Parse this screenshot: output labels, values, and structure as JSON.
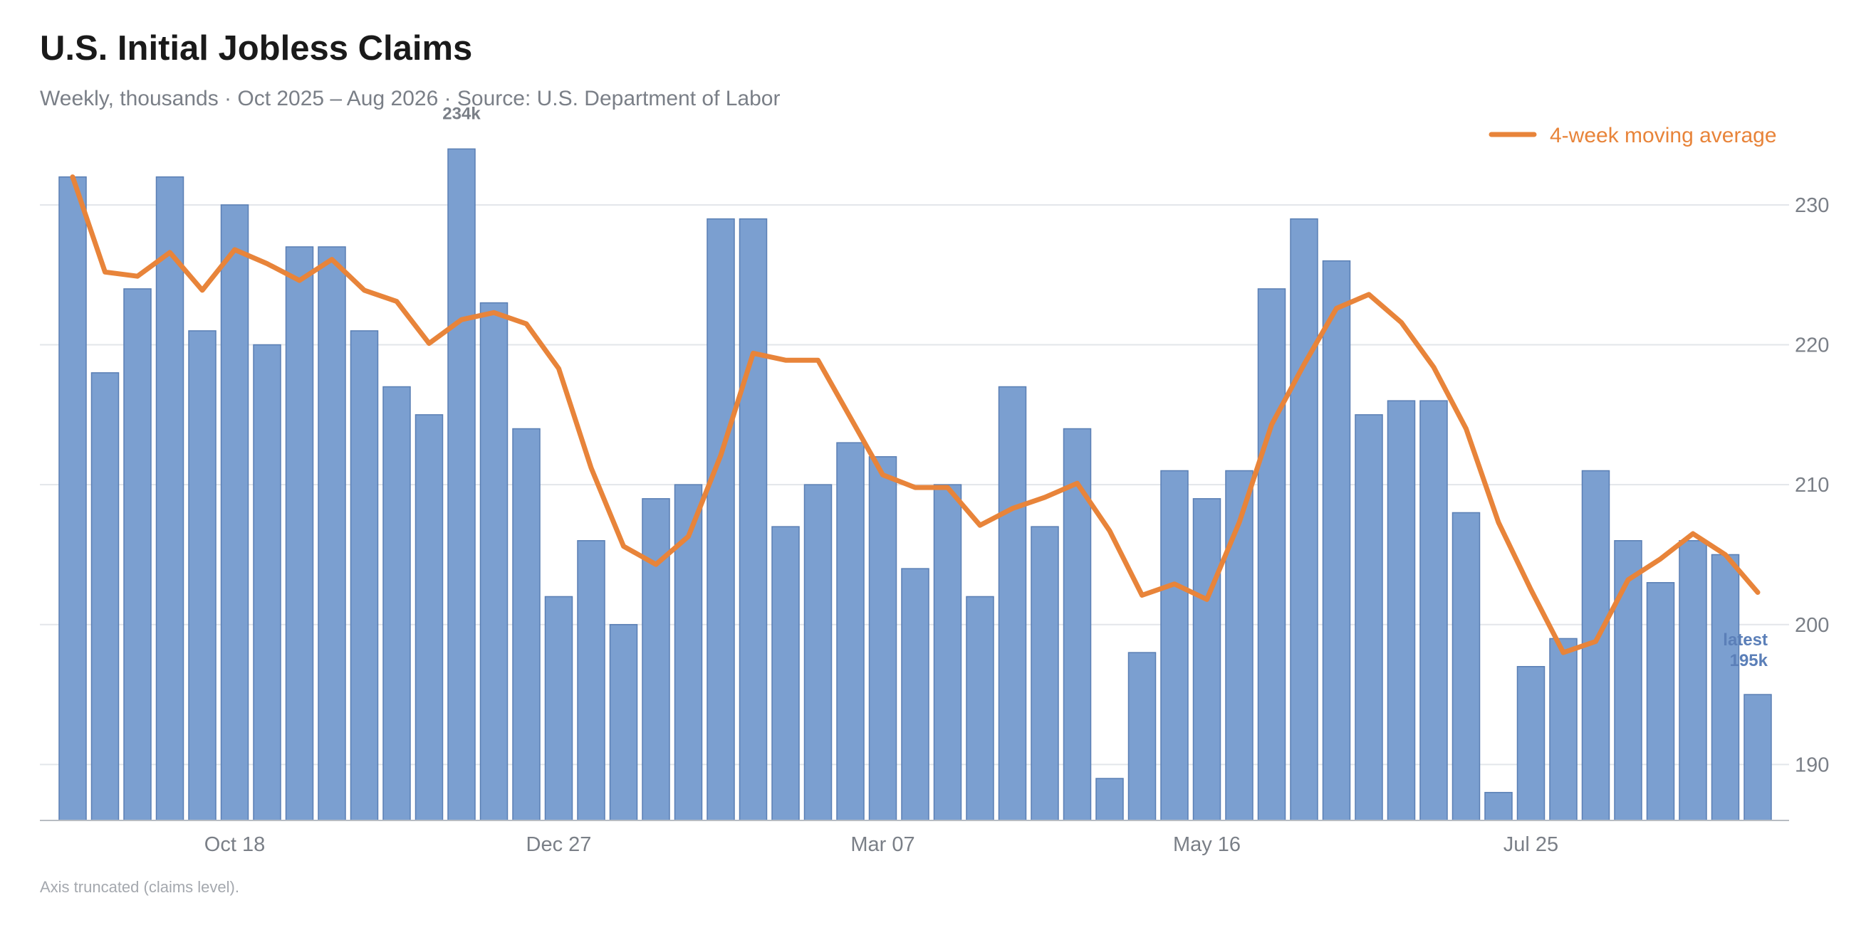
{
  "title": "U.S. Initial Jobless Claims",
  "subtitle": "Weekly, thousands · Oct 2025 – Aug 2026 · Source: U.S. Department of Labor",
  "footnote": "Axis truncated (claims level).",
  "colors": {
    "bar": "#7b9fd0",
    "bar_stroke": "#5a7fb4",
    "line": "#e8843a",
    "grid": "#e3e6ea",
    "axis": "#b8bcc2",
    "peak_label": "#7a7f87",
    "latest_label": "#5b7fb8"
  },
  "chart_data": {
    "type": "bar",
    "ylim": [
      186,
      236
    ],
    "yticks": [
      190,
      200,
      210,
      220,
      230
    ],
    "grid": true,
    "xtick_labels": [
      {
        "index": 5,
        "label": "Oct 18"
      },
      {
        "index": 15,
        "label": "Dec 27"
      },
      {
        "index": 25,
        "label": "Mar 07"
      },
      {
        "index": 35,
        "label": "May 16"
      },
      {
        "index": 45,
        "label": "Jul 25"
      }
    ],
    "legend": {
      "position": "top-right",
      "entries": [
        "4-week moving average"
      ]
    },
    "series": [
      {
        "type": "bar",
        "values": [
          232,
          218,
          224,
          232,
          221,
          230,
          220,
          227,
          227,
          221,
          217,
          215,
          234,
          223,
          214,
          202,
          206,
          200,
          209,
          210,
          229,
          229,
          207,
          210,
          213,
          212,
          204,
          210,
          202,
          217,
          207,
          214,
          189,
          198,
          211,
          209,
          211,
          224,
          229,
          226,
          215,
          216,
          216,
          208,
          188,
          197,
          199,
          211,
          206,
          203,
          206,
          205,
          195
        ]
      },
      {
        "name": "4-week moving average",
        "type": "line",
        "values": [
          232,
          225.2,
          224.9,
          226.6,
          223.9,
          226.8,
          225.8,
          224.6,
          226.1,
          223.9,
          223.1,
          220.1,
          221.8,
          222.3,
          221.5,
          218.3,
          211.2,
          205.6,
          204.3,
          206.3,
          212.1,
          219.4,
          218.9,
          218.9,
          214.8,
          210.7,
          209.8,
          209.8,
          207.1,
          208.3,
          209.1,
          210.1,
          206.7,
          202.1,
          202.9,
          201.8,
          207.3,
          214.3,
          218.6,
          222.6,
          223.6,
          221.6,
          218.4,
          214.0,
          207.3,
          202.5,
          198.0,
          198.8,
          203.2,
          204.7,
          206.5,
          205.0,
          202.3
        ]
      }
    ],
    "annotations": {
      "peak": "234k",
      "latest_line1": "latest",
      "latest_line2": "195k"
    }
  }
}
